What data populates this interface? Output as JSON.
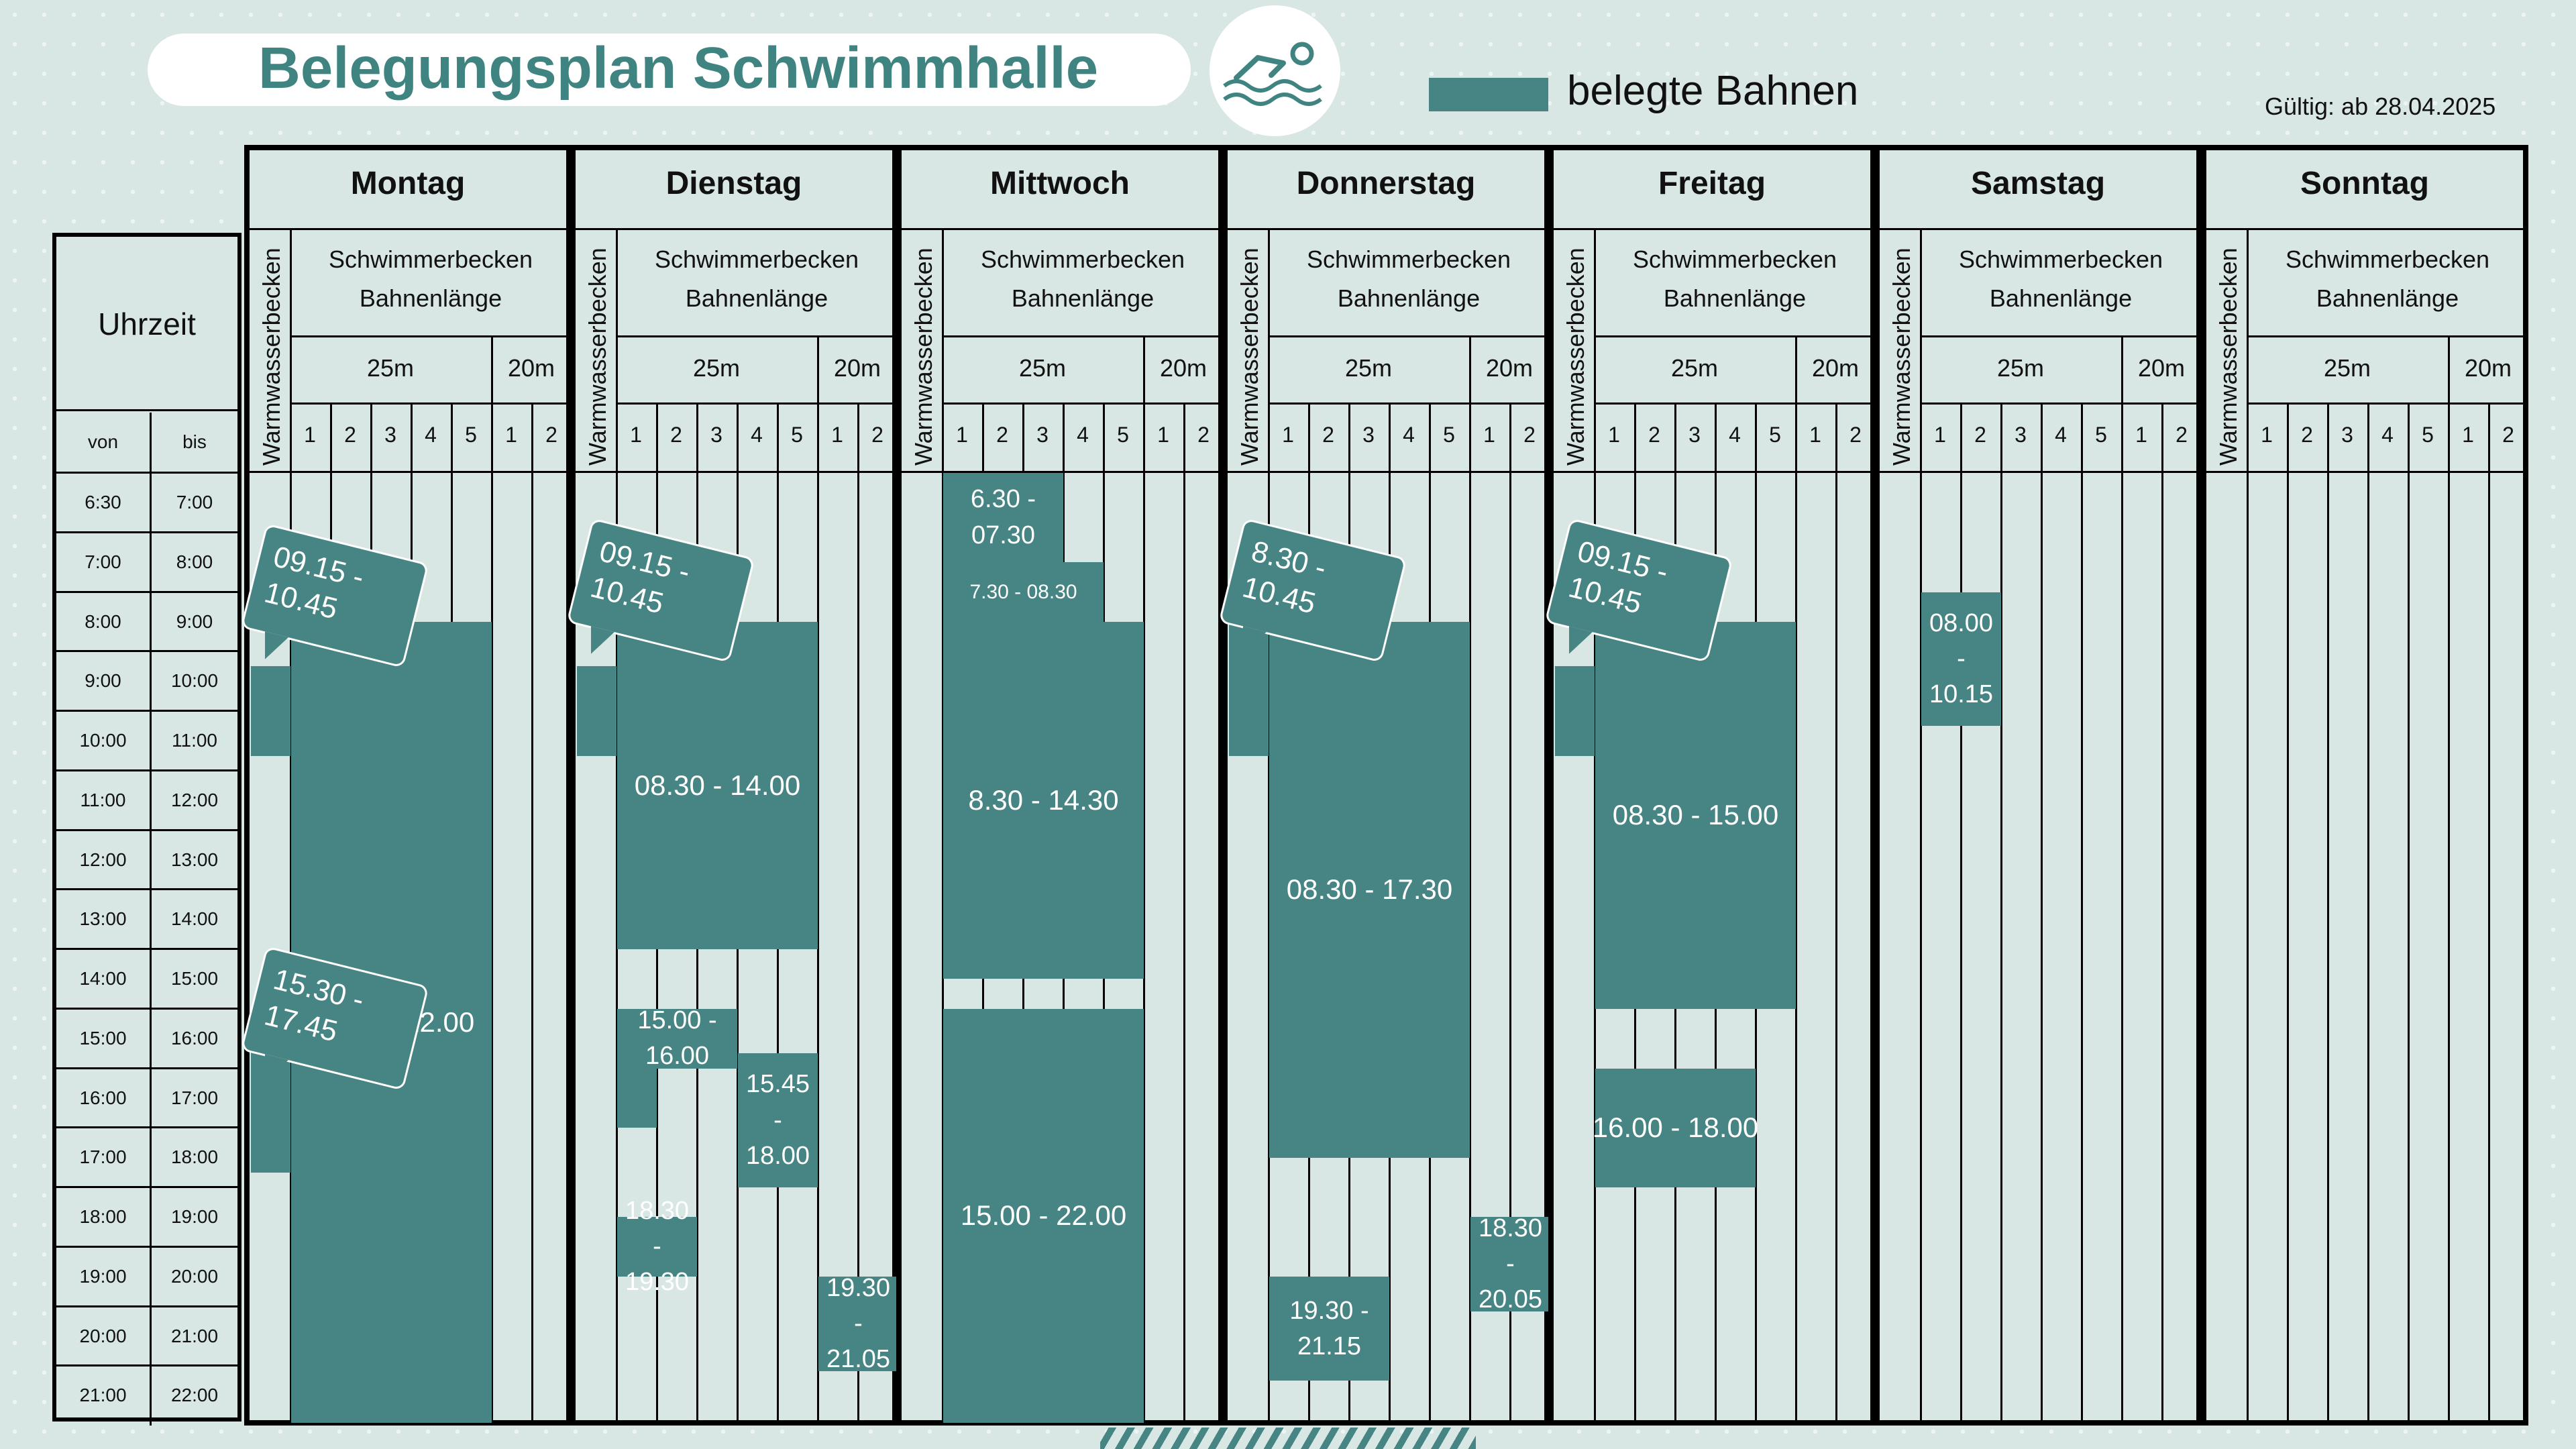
{
  "header": {
    "title": "Belegungsplan Schwimmhalle",
    "legend_label": "belegte Bahnen",
    "valid_from": "Gültig: ab 28.04.2025",
    "icon": "swimmer-icon"
  },
  "colors": {
    "occupied": "#468583",
    "background": "#d8e6e4",
    "title": "#3f8481"
  },
  "time_table": {
    "header": "Uhrzeit",
    "col_from": "von",
    "col_to": "bis",
    "rows": [
      [
        "6:30",
        "7:00"
      ],
      [
        "7:00",
        "8:00"
      ],
      [
        "8:00",
        "9:00"
      ],
      [
        "9:00",
        "10:00"
      ],
      [
        "10:00",
        "11:00"
      ],
      [
        "11:00",
        "12:00"
      ],
      [
        "12:00",
        "13:00"
      ],
      [
        "13:00",
        "14:00"
      ],
      [
        "14:00",
        "15:00"
      ],
      [
        "15:00",
        "16:00"
      ],
      [
        "16:00",
        "17:00"
      ],
      [
        "17:00",
        "18:00"
      ],
      [
        "18:00",
        "19:00"
      ],
      [
        "19:00",
        "20:00"
      ],
      [
        "20:00",
        "21:00"
      ],
      [
        "21:00",
        "22:00"
      ]
    ]
  },
  "day_template": {
    "warm": "Warmwasserbecken",
    "pool_line1": "Schwimmerbecken",
    "pool_line2": "Bahnenlänge",
    "len25": "25m",
    "len20": "20m",
    "lanes": [
      "1",
      "2",
      "3",
      "4",
      "5",
      "1",
      "2"
    ]
  },
  "days": [
    {
      "name": "Montag",
      "blocks": [
        {
          "lane": 0,
          "from": "09.15",
          "to": "10.45"
        },
        {
          "lane": 0,
          "from": "15.30",
          "to": "17.45"
        },
        {
          "lanes": [
            1,
            5
          ],
          "from": "08.30",
          "to": "22.00",
          "label": "08.30 - 22.00"
        }
      ],
      "callouts": [
        "09.15 - 10.45",
        "15.30 - 17.45"
      ]
    },
    {
      "name": "Dienstag",
      "blocks": [
        {
          "lane": 0,
          "from": "09.15",
          "to": "10.45"
        },
        {
          "lanes": [
            1,
            5
          ],
          "from": "08.30",
          "to": "14.00",
          "label": "08.30 - 14.00"
        },
        {
          "lanes": [
            1,
            3
          ],
          "from": "15.00",
          "to": "16.00",
          "label": "15.00 - 16.00"
        },
        {
          "lane": 1,
          "from": "16.00",
          "to": "17.00"
        },
        {
          "lanes": [
            4,
            5
          ],
          "from": "15.45",
          "to": "18.00",
          "label": "15.45 - 18.00"
        },
        {
          "lanes": [
            1,
            2
          ],
          "from": "18.30",
          "to": "19.30",
          "label": "18.30 - 19.30"
        },
        {
          "lanes": [
            6,
            7
          ],
          "from": "19.30",
          "to": "21.05",
          "label": "19.30 - 21.05"
        }
      ],
      "callouts": [
        "09.15 - 10.45"
      ]
    },
    {
      "name": "Mittwoch",
      "blocks": [
        {
          "lanes": [
            1,
            3
          ],
          "from": "06.30",
          "to": "07.30",
          "label": "6.30 - 07.30"
        },
        {
          "lanes": [
            1,
            4
          ],
          "from": "07.30",
          "to": "08.30",
          "label": "7.30 - 08.30"
        },
        {
          "lanes": [
            1,
            5
          ],
          "from": "08.30",
          "to": "14.30",
          "label": "8.30 - 14.30"
        },
        {
          "lanes": [
            1,
            5
          ],
          "from": "15.00",
          "to": "22.00",
          "label": "15.00 - 22.00"
        }
      ],
      "callouts": []
    },
    {
      "name": "Donnerstag",
      "blocks": [
        {
          "lane": 0,
          "from": "08.30",
          "to": "10.45"
        },
        {
          "lanes": [
            1,
            5
          ],
          "from": "08.30",
          "to": "17.30",
          "label": "08.30 - 17.30"
        },
        {
          "lanes": [
            1,
            3
          ],
          "from": "19.30",
          "to": "21.15",
          "label": "19.30 - 21.15"
        },
        {
          "lanes": [
            6,
            7
          ],
          "from": "18.30",
          "to": "20.05",
          "label": "18.30 - 20.05"
        }
      ],
      "callouts": [
        "8.30 - 10.45"
      ]
    },
    {
      "name": "Freitag",
      "blocks": [
        {
          "lane": 0,
          "from": "09.15",
          "to": "10.45"
        },
        {
          "lanes": [
            1,
            5
          ],
          "from": "08.30",
          "to": "15.00",
          "label": "08.30 - 15.00"
        },
        {
          "lanes": [
            1,
            4
          ],
          "from": "16.00",
          "to": "18.00",
          "label": "16.00 - 18.00"
        }
      ],
      "callouts": [
        "09.15 - 10.45"
      ]
    },
    {
      "name": "Samstag",
      "blocks": [
        {
          "lanes": [
            1,
            2
          ],
          "from": "08.00",
          "to": "10.15",
          "label": "08.00 - 10.15"
        }
      ],
      "callouts": []
    },
    {
      "name": "Sonntag",
      "blocks": [],
      "callouts": []
    }
  ]
}
